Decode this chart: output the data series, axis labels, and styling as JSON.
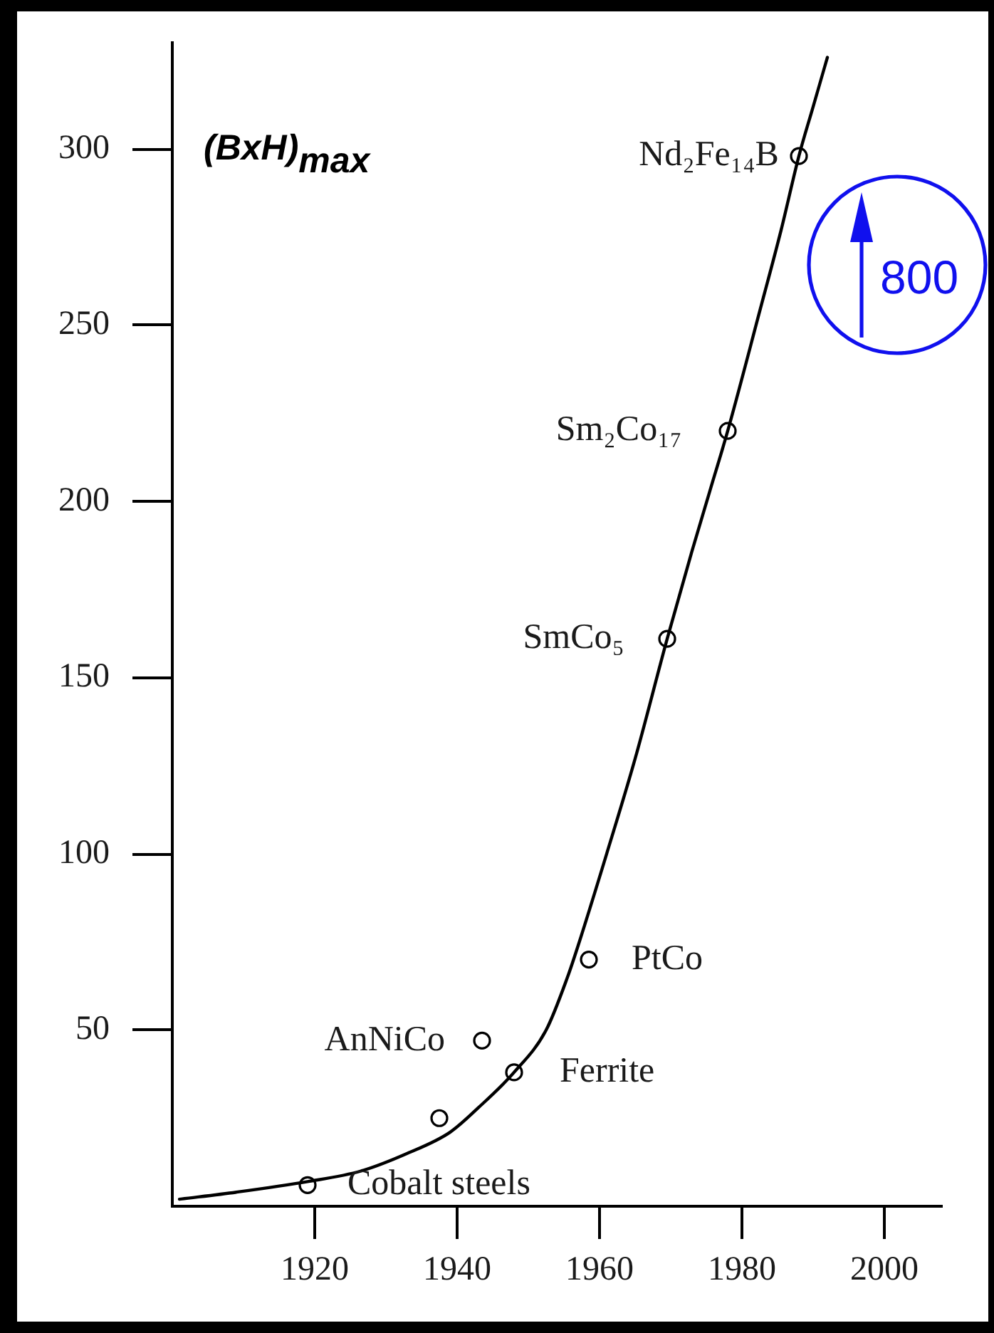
{
  "chart_data": {
    "type": "line",
    "ylabel": "(BxH)$_{max}$",
    "xlim": [
      1900,
      2008
    ],
    "xticks": [
      1920,
      1940,
      1960,
      1980,
      2000
    ],
    "ylim": [
      0,
      330
    ],
    "yticks": [
      50,
      100,
      150,
      200,
      250,
      300
    ],
    "series": [
      {
        "type": "line",
        "marker": "none",
        "color": "#000000",
        "x": [
          1901,
          1909,
          1919,
          1926.5,
          1933,
          1939,
          1943,
          1948,
          1952.5,
          1955.5,
          1957,
          1961,
          1965,
          1969.5,
          1973,
          1975.5,
          1978,
          1982.5,
          1985.5,
          1988,
          1990,
          1992
        ],
        "values": [
          2,
          4,
          7,
          10,
          15,
          21,
          28,
          38,
          50,
          65,
          74,
          100,
          127,
          161,
          186,
          203,
          220,
          254,
          277,
          298,
          312,
          326
        ]
      },
      {
        "type": "scatter",
        "marker": "circle",
        "color": "#000000",
        "x": [
          1919,
          1937.5,
          1943.5,
          1948,
          1958.5,
          1969.5,
          1978,
          1988
        ],
        "values": [
          6,
          25,
          47,
          38,
          70,
          161,
          220,
          298
        ]
      }
    ],
    "annotations": [
      {
        "text": "Cobalt steels",
        "x": 1919,
        "y": 6
      },
      {
        "text": "AnNiCo",
        "x": 1943.5,
        "y": 47
      },
      {
        "text": "Ferrite",
        "x": 1948,
        "y": 38
      },
      {
        "text": "PtCo",
        "x": 1958.5,
        "y": 70
      },
      {
        "text": "SmCo₅",
        "x": 1969.5,
        "y": 161
      },
      {
        "text": "Sm₂Co₁₇",
        "x": 1978,
        "y": 220
      },
      {
        "text": "Nd₂Fe₁₄B",
        "x": 1988,
        "y": 298
      },
      "800"
    ]
  }
}
